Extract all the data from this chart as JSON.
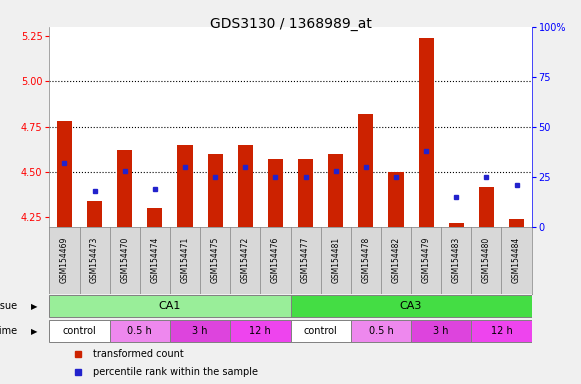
{
  "title": "GDS3130 / 1368989_at",
  "samples": [
    "GSM154469",
    "GSM154473",
    "GSM154470",
    "GSM154474",
    "GSM154471",
    "GSM154475",
    "GSM154472",
    "GSM154476",
    "GSM154477",
    "GSM154481",
    "GSM154478",
    "GSM154482",
    "GSM154479",
    "GSM154483",
    "GSM154480",
    "GSM154484"
  ],
  "transformed_count": [
    4.78,
    4.34,
    4.62,
    4.3,
    4.65,
    4.6,
    4.65,
    4.57,
    4.57,
    4.6,
    4.82,
    4.5,
    5.24,
    4.22,
    4.42,
    4.24
  ],
  "percentile_rank": [
    32,
    18,
    28,
    19,
    30,
    25,
    30,
    25,
    25,
    28,
    30,
    25,
    38,
    15,
    25,
    21
  ],
  "ylim_left": [
    4.2,
    5.3
  ],
  "ylim_right": [
    0,
    100
  ],
  "yticks_left": [
    4.25,
    4.5,
    4.75,
    5.0,
    5.25
  ],
  "yticks_right": [
    0,
    25,
    50,
    75,
    100
  ],
  "hlines": [
    4.5,
    4.75,
    5.0
  ],
  "bar_color": "#cc2200",
  "dot_color": "#2222cc",
  "bar_width": 0.5,
  "tissue_groups": [
    {
      "label": "CA1",
      "start": 0,
      "end": 8,
      "color": "#99ee99"
    },
    {
      "label": "CA3",
      "start": 8,
      "end": 16,
      "color": "#44dd44"
    }
  ],
  "time_groups": [
    {
      "label": "control",
      "start": 0,
      "end": 2,
      "color": "#ffffff"
    },
    {
      "label": "0.5 h",
      "start": 2,
      "end": 4,
      "color": "#ee99ee"
    },
    {
      "label": "3 h",
      "start": 4,
      "end": 6,
      "color": "#dd55dd"
    },
    {
      "label": "12 h",
      "start": 6,
      "end": 8,
      "color": "#ee44ee"
    },
    {
      "label": "control",
      "start": 8,
      "end": 10,
      "color": "#ffffff"
    },
    {
      "label": "0.5 h",
      "start": 10,
      "end": 12,
      "color": "#ee99ee"
    },
    {
      "label": "3 h",
      "start": 12,
      "end": 14,
      "color": "#dd55dd"
    },
    {
      "label": "12 h",
      "start": 14,
      "end": 16,
      "color": "#ee44ee"
    }
  ],
  "legend_items": [
    {
      "label": "transformed count",
      "color": "#cc2200"
    },
    {
      "label": "percentile rank within the sample",
      "color": "#2222cc"
    }
  ],
  "bg_color": "#d8d8d8",
  "plot_bg": "#ffffff",
  "fig_bg": "#f0f0f0",
  "title_fontsize": 10,
  "tick_fontsize": 7,
  "label_fontsize": 7,
  "tissue_fontsize": 8,
  "time_fontsize": 7
}
